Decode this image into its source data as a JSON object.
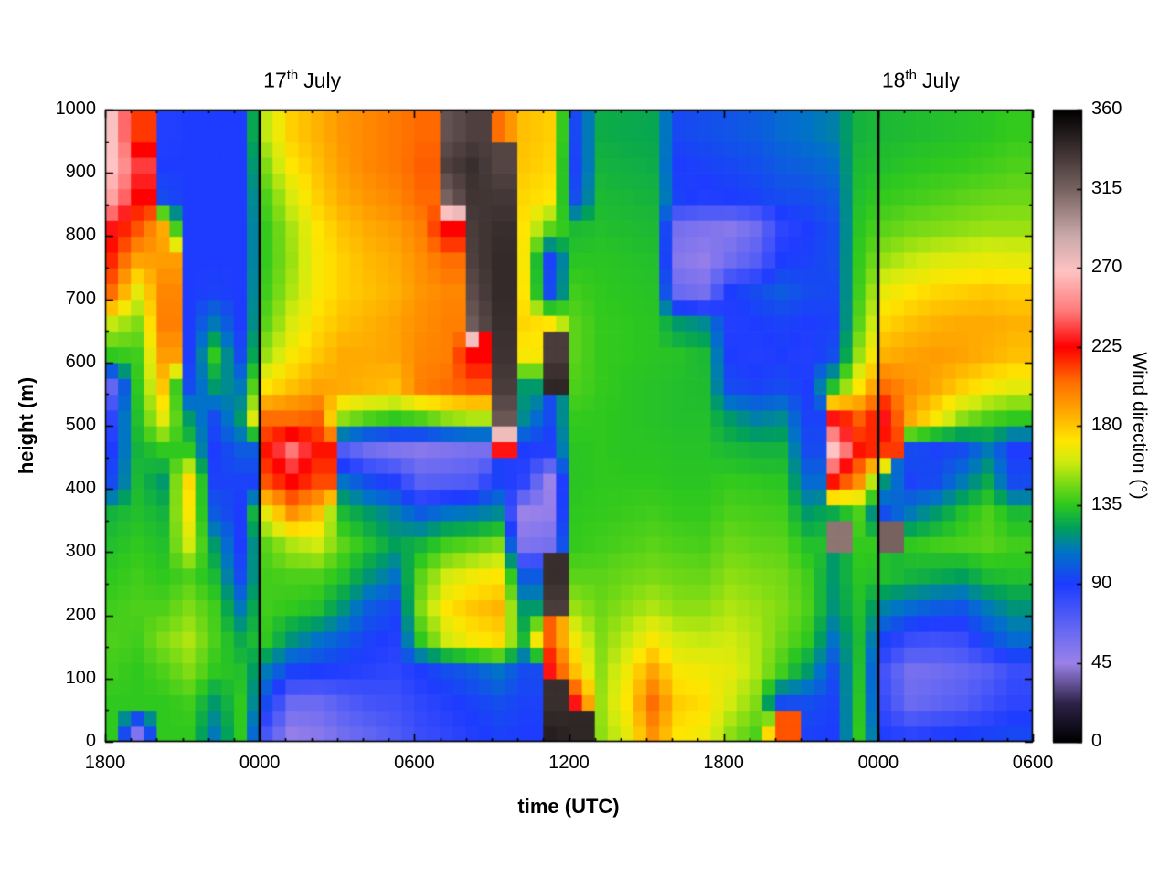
{
  "figure": {
    "background_color": "#ffffff",
    "frame_color": "#000000"
  },
  "chart_data": {
    "type": "heatmap",
    "title": "",
    "xlabel": "time (UTC)",
    "ylabel": "height (m)",
    "colorbar_label": "Wind direction (°)",
    "x_tick_labels": [
      "1800",
      "0000",
      "0600",
      "1200",
      "1800",
      "0000",
      "0600"
    ],
    "x_tick_hours": [
      0,
      6,
      12,
      18,
      24,
      30,
      36
    ],
    "x_total_hours": 36,
    "x_minor_tick_every_hours": 1,
    "y_tick_values": [
      0,
      100,
      200,
      300,
      400,
      500,
      600,
      700,
      800,
      900,
      1000
    ],
    "y_minor_step": 50,
    "y_range": [
      0,
      1000
    ],
    "cb_tick_values": [
      0,
      45,
      90,
      135,
      180,
      225,
      270,
      315,
      360
    ],
    "cb_range": [
      0,
      360
    ],
    "value_units": "wind direction (degrees)",
    "vertical_lines_hours": [
      6,
      30
    ],
    "annotations": [
      {
        "day": "17",
        "ordinal": "th",
        "month": "July",
        "hour_offset": 6
      },
      {
        "day": "18",
        "ordinal": "th",
        "month": "July",
        "hour_offset": 30
      }
    ],
    "grid_order": "36 hourly columns from 1800 UTC (+0 h) to 0500 UTC (+35 h); each column lists 20 height bins of 50 m from 0 m (bottom) to 1000 m (top); values are wind direction in degrees",
    "time_step_hours": 1,
    "height_bin_meters": 50,
    "palette_stops": [
      [
        0,
        "#000000"
      ],
      [
        22,
        "#2d2347"
      ],
      [
        45,
        "#9b82e8"
      ],
      [
        68,
        "#5a62f5"
      ],
      [
        90,
        "#1e3cff"
      ],
      [
        108,
        "#0073c8"
      ],
      [
        122,
        "#00a05a"
      ],
      [
        135,
        "#2ec81e"
      ],
      [
        148,
        "#7fdc14"
      ],
      [
        160,
        "#d2eb0f"
      ],
      [
        172,
        "#ffe600"
      ],
      [
        185,
        "#ffb400"
      ],
      [
        205,
        "#ff6e00"
      ],
      [
        225,
        "#ff0000"
      ],
      [
        245,
        "#ff7878"
      ],
      [
        268,
        "#ffc3c3"
      ],
      [
        288,
        "#cbaaaa"
      ],
      [
        315,
        "#77625f"
      ],
      [
        338,
        "#392e2e"
      ],
      [
        360,
        "#000000"
      ]
    ],
    "grid_degrees": [
      [
        135,
        135,
        138,
        140,
        138,
        135,
        132,
        128,
        95,
        90,
        85,
        65,
        135,
        158,
        205,
        218,
        228,
        258,
        268,
        270
      ],
      [
        55,
        135,
        135,
        138,
        140,
        138,
        135,
        132,
        130,
        128,
        132,
        135,
        138,
        148,
        165,
        190,
        210,
        225,
        235,
        215
      ],
      [
        135,
        135,
        140,
        148,
        140,
        135,
        132,
        128,
        120,
        135,
        165,
        180,
        192,
        200,
        198,
        192,
        188,
        95,
        90,
        88
      ],
      [
        135,
        138,
        148,
        155,
        148,
        140,
        160,
        170,
        175,
        135,
        120,
        95,
        90,
        90,
        90,
        90,
        90,
        90,
        90,
        90
      ],
      [
        110,
        120,
        135,
        140,
        138,
        130,
        120,
        100,
        92,
        90,
        95,
        120,
        135,
        110,
        92,
        90,
        90,
        90,
        90,
        90
      ],
      [
        135,
        135,
        132,
        125,
        110,
        95,
        90,
        90,
        92,
        100,
        120,
        110,
        95,
        90,
        90,
        90,
        90,
        90,
        90,
        90
      ],
      [
        75,
        95,
        110,
        135,
        138,
        138,
        142,
        165,
        210,
        222,
        205,
        172,
        152,
        142,
        138,
        136,
        136,
        140,
        148,
        158
      ],
      [
        48,
        62,
        92,
        118,
        135,
        140,
        155,
        195,
        225,
        245,
        205,
        182,
        170,
        162,
        155,
        152,
        154,
        162,
        172,
        178
      ],
      [
        52,
        62,
        90,
        108,
        132,
        140,
        160,
        182,
        212,
        222,
        208,
        190,
        180,
        175,
        170,
        170,
        172,
        178,
        182,
        186
      ],
      [
        60,
        70,
        88,
        100,
        118,
        132,
        142,
        130,
        108,
        72,
        150,
        188,
        188,
        182,
        178,
        178,
        182,
        188,
        192,
        194
      ],
      [
        66,
        76,
        86,
        92,
        100,
        118,
        132,
        120,
        95,
        60,
        140,
        185,
        188,
        186,
        182,
        184,
        188,
        194,
        198,
        198
      ],
      [
        72,
        78,
        84,
        88,
        94,
        108,
        122,
        112,
        88,
        55,
        135,
        182,
        190,
        190,
        186,
        188,
        192,
        198,
        202,
        202
      ],
      [
        80,
        84,
        90,
        135,
        148,
        142,
        128,
        100,
        68,
        52,
        140,
        200,
        198,
        196,
        194,
        196,
        200,
        206,
        208,
        206
      ],
      [
        84,
        88,
        96,
        160,
        172,
        160,
        138,
        108,
        70,
        55,
        150,
        205,
        200,
        200,
        198,
        205,
        225,
        315,
        330,
        322
      ],
      [
        88,
        92,
        100,
        170,
        180,
        168,
        142,
        110,
        72,
        58,
        155,
        210,
        225,
        318,
        325,
        330,
        332,
        335,
        338,
        330
      ],
      [
        92,
        96,
        108,
        175,
        185,
        172,
        148,
        115,
        92,
        228,
        320,
        332,
        336,
        338,
        340,
        340,
        338,
        334,
        328,
        205
      ],
      [
        90,
        92,
        95,
        130,
        120,
        100,
        55,
        45,
        85,
        90,
        115,
        120,
        170,
        176,
        172,
        170,
        172,
        176,
        180,
        182
      ],
      [
        345,
        338,
        228,
        208,
        332,
        338,
        58,
        48,
        45,
        88,
        95,
        342,
        332,
        172,
        95,
        92,
        142,
        172,
        176,
        178
      ],
      [
        342,
        228,
        182,
        168,
        152,
        142,
        136,
        135,
        134,
        134,
        136,
        140,
        142,
        142,
        138,
        134,
        130,
        96,
        92,
        94
      ],
      [
        150,
        152,
        150,
        148,
        145,
        142,
        138,
        136,
        135,
        135,
        135,
        136,
        136,
        136,
        135,
        134,
        132,
        130,
        128,
        126
      ],
      [
        165,
        172,
        168,
        158,
        150,
        145,
        140,
        137,
        135,
        134,
        134,
        134,
        135,
        135,
        134,
        133,
        131,
        129,
        127,
        125
      ],
      [
        195,
        205,
        190,
        170,
        155,
        147,
        142,
        138,
        135,
        134,
        133,
        133,
        134,
        134,
        133,
        132,
        130,
        128,
        126,
        124
      ],
      [
        172,
        178,
        170,
        160,
        150,
        145,
        140,
        136,
        134,
        133,
        132,
        132,
        133,
        120,
        62,
        52,
        58,
        92,
        90,
        94
      ],
      [
        168,
        174,
        168,
        158,
        150,
        144,
        139,
        136,
        134,
        133,
        132,
        131,
        130,
        115,
        58,
        48,
        55,
        88,
        92,
        96
      ],
      [
        150,
        160,
        165,
        160,
        155,
        150,
        145,
        140,
        136,
        130,
        120,
        95,
        90,
        88,
        90,
        60,
        52,
        90,
        94,
        98
      ],
      [
        140,
        148,
        155,
        155,
        152,
        148,
        143,
        139,
        135,
        128,
        112,
        92,
        88,
        90,
        95,
        70,
        60,
        92,
        96,
        100
      ],
      [
        210,
        95,
        138,
        145,
        148,
        146,
        142,
        138,
        134,
        128,
        115,
        95,
        90,
        92,
        100,
        90,
        85,
        95,
        100,
        105
      ],
      [
        92,
        96,
        120,
        135,
        140,
        138,
        132,
        120,
        105,
        95,
        92,
        90,
        88,
        90,
        95,
        92,
        90,
        96,
        102,
        108
      ],
      [
        90,
        92,
        96,
        108,
        118,
        120,
        308,
        125,
        222,
        268,
        228,
        132,
        96,
        92,
        94,
        96,
        96,
        100,
        106,
        112
      ],
      [
        135,
        134,
        132,
        130,
        132,
        134,
        136,
        140,
        195,
        222,
        208,
        172,
        152,
        142,
        138,
        136,
        134,
        132,
        130,
        128
      ],
      [
        88,
        80,
        76,
        92,
        112,
        132,
        315,
        96,
        118,
        215,
        228,
        205,
        186,
        176,
        166,
        152,
        142,
        136,
        132,
        130
      ],
      [
        85,
        62,
        58,
        80,
        105,
        128,
        135,
        110,
        92,
        95,
        188,
        195,
        190,
        182,
        172,
        158,
        146,
        138,
        134,
        131
      ],
      [
        88,
        66,
        60,
        78,
        100,
        125,
        138,
        120,
        95,
        92,
        170,
        188,
        192,
        186,
        176,
        162,
        148,
        140,
        135,
        132
      ],
      [
        90,
        70,
        64,
        80,
        98,
        122,
        140,
        132,
        110,
        95,
        150,
        178,
        190,
        188,
        178,
        164,
        150,
        142,
        136,
        133
      ],
      [
        92,
        78,
        70,
        95,
        110,
        130,
        142,
        140,
        125,
        110,
        140,
        170,
        186,
        188,
        180,
        166,
        152,
        144,
        138,
        134
      ],
      [
        94,
        85,
        80,
        105,
        118,
        132,
        138,
        130,
        95,
        90,
        135,
        165,
        182,
        186,
        178,
        165,
        152,
        145,
        140,
        136
      ]
    ]
  }
}
